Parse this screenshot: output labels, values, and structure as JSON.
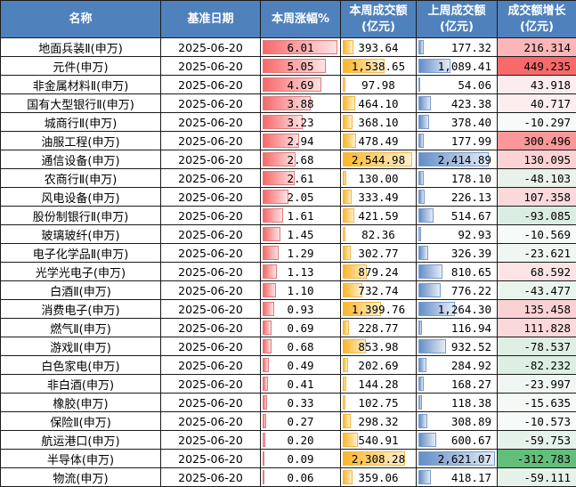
{
  "headers": {
    "name": "名称",
    "date": "基准日期",
    "pct": "本周涨幅%",
    "amt_this_1": "本周成交额",
    "amt_this_2": "(亿元)",
    "amt_last_1": "上周成交额",
    "amt_last_2": "(亿元)",
    "growth_1": "成交额增长",
    "growth_2": "(亿元)"
  },
  "colors": {
    "header_bg": "#4f81bd",
    "bar_red": "#f8696b",
    "bar_orange": "#ffb628",
    "bar_blue": "#638ec6",
    "growth_pos_max": "#f8696b",
    "growth_neg_max": "#63be7b"
  },
  "rows": [
    {
      "name": "地面兵装Ⅱ(申万)",
      "date": "2025-06-20",
      "pct": "6.01",
      "amt_this": "393.64",
      "amt_last": "177.32",
      "growth": "216.314",
      "growth_bg": "#fbb7b8"
    },
    {
      "name": "元件(申万)",
      "date": "2025-06-20",
      "pct": "5.05",
      "amt_this": "1,538.65",
      "amt_last": "1,089.41",
      "growth": "449.235",
      "growth_bg": "#f8696b"
    },
    {
      "name": "非金属材料Ⅱ(申万)",
      "date": "2025-06-20",
      "pct": "4.69",
      "amt_this": "97.98",
      "amt_last": "54.06",
      "growth": "43.918",
      "growth_bg": "#fcecee"
    },
    {
      "name": "国有大型银行Ⅱ(申万)",
      "date": "2025-06-20",
      "pct": "3.88",
      "amt_this": "464.10",
      "amt_last": "423.38",
      "growth": "40.717",
      "growth_bg": "#fcedef"
    },
    {
      "name": "城商行Ⅱ(申万)",
      "date": "2025-06-20",
      "pct": "3.23",
      "amt_this": "368.10",
      "amt_last": "378.40",
      "growth": "-10.297",
      "growth_bg": "#f6faf8"
    },
    {
      "name": "油服工程(申万)",
      "date": "2025-06-20",
      "pct": "2.94",
      "amt_this": "478.49",
      "amt_last": "177.99",
      "growth": "300.496",
      "growth_bg": "#fa9899"
    },
    {
      "name": "通信设备(申万)",
      "date": "2025-06-20",
      "pct": "2.68",
      "amt_this": "2,544.98",
      "amt_last": "2,414.89",
      "growth": "130.095",
      "growth_bg": "#fbd3d5"
    },
    {
      "name": "农商行Ⅱ(申万)",
      "date": "2025-06-20",
      "pct": "2.61",
      "amt_this": "130.00",
      "amt_last": "178.10",
      "growth": "-48.103",
      "growth_bg": "#e7f3ea"
    },
    {
      "name": "风电设备(申万)",
      "date": "2025-06-20",
      "pct": "2.05",
      "amt_this": "333.49",
      "amt_last": "226.13",
      "growth": "107.358",
      "growth_bg": "#fbd9db"
    },
    {
      "name": "股份制银行Ⅱ(申万)",
      "date": "2025-06-20",
      "pct": "1.61",
      "amt_this": "421.59",
      "amt_last": "514.67",
      "growth": "-93.085",
      "growth_bg": "#d9ede0"
    },
    {
      "name": "玻璃玻纤(申万)",
      "date": "2025-06-20",
      "pct": "1.45",
      "amt_this": "82.36",
      "amt_last": "92.93",
      "growth": "-10.569",
      "growth_bg": "#f6faf8"
    },
    {
      "name": "电子化学品Ⅱ(申万)",
      "date": "2025-06-20",
      "pct": "1.29",
      "amt_this": "302.77",
      "amt_last": "326.39",
      "growth": "-23.621",
      "growth_bg": "#f0f7f2"
    },
    {
      "name": "光学光电子(申万)",
      "date": "2025-06-20",
      "pct": "1.13",
      "amt_this": "879.24",
      "amt_last": "810.65",
      "growth": "68.592",
      "growth_bg": "#fce4e6"
    },
    {
      "name": "白酒Ⅱ(申万)",
      "date": "2025-06-20",
      "pct": "1.10",
      "amt_this": "732.74",
      "amt_last": "776.22",
      "growth": "-43.477",
      "growth_bg": "#e9f4ec"
    },
    {
      "name": "消费电子(申万)",
      "date": "2025-06-20",
      "pct": "0.93",
      "amt_this": "1,399.76",
      "amt_last": "1,264.30",
      "growth": "135.458",
      "growth_bg": "#fbd2d4"
    },
    {
      "name": "燃气Ⅱ(申万)",
      "date": "2025-06-20",
      "pct": "0.69",
      "amt_this": "228.77",
      "amt_last": "116.94",
      "growth": "111.828",
      "growth_bg": "#fbd8da"
    },
    {
      "name": "游戏Ⅱ(申万)",
      "date": "2025-06-20",
      "pct": "0.68",
      "amt_this": "853.98",
      "amt_last": "932.52",
      "growth": "-78.537",
      "growth_bg": "#dfefe4"
    },
    {
      "name": "白色家电(申万)",
      "date": "2025-06-20",
      "pct": "0.49",
      "amt_this": "202.69",
      "amt_last": "284.92",
      "growth": "-82.232",
      "growth_bg": "#ddeee3"
    },
    {
      "name": "非白酒(申万)",
      "date": "2025-06-20",
      "pct": "0.41",
      "amt_this": "144.28",
      "amt_last": "168.27",
      "growth": "-23.997",
      "growth_bg": "#f0f7f2"
    },
    {
      "name": "橡胶(申万)",
      "date": "2025-06-20",
      "pct": "0.33",
      "amt_this": "102.75",
      "amt_last": "118.38",
      "growth": "-15.635",
      "growth_bg": "#f4f9f5"
    },
    {
      "name": "保险Ⅱ(申万)",
      "date": "2025-06-20",
      "pct": "0.27",
      "amt_this": "298.32",
      "amt_last": "308.89",
      "growth": "-10.573",
      "growth_bg": "#f6faf8"
    },
    {
      "name": "航运港口(申万)",
      "date": "2025-06-20",
      "pct": "0.20",
      "amt_this": "540.91",
      "amt_last": "600.67",
      "growth": "-59.753",
      "growth_bg": "#e5f2e9"
    },
    {
      "name": "半导体(申万)",
      "date": "2025-06-20",
      "pct": "0.09",
      "amt_this": "2,308.28",
      "amt_last": "2,621.07",
      "growth": "-312.783",
      "growth_bg": "#63be7b"
    },
    {
      "name": "物流(申万)",
      "date": "2025-06-20",
      "pct": "0.06",
      "amt_this": "359.06",
      "amt_last": "418.17",
      "growth": "-59.111",
      "growth_bg": "#e5f2e9"
    }
  ]
}
